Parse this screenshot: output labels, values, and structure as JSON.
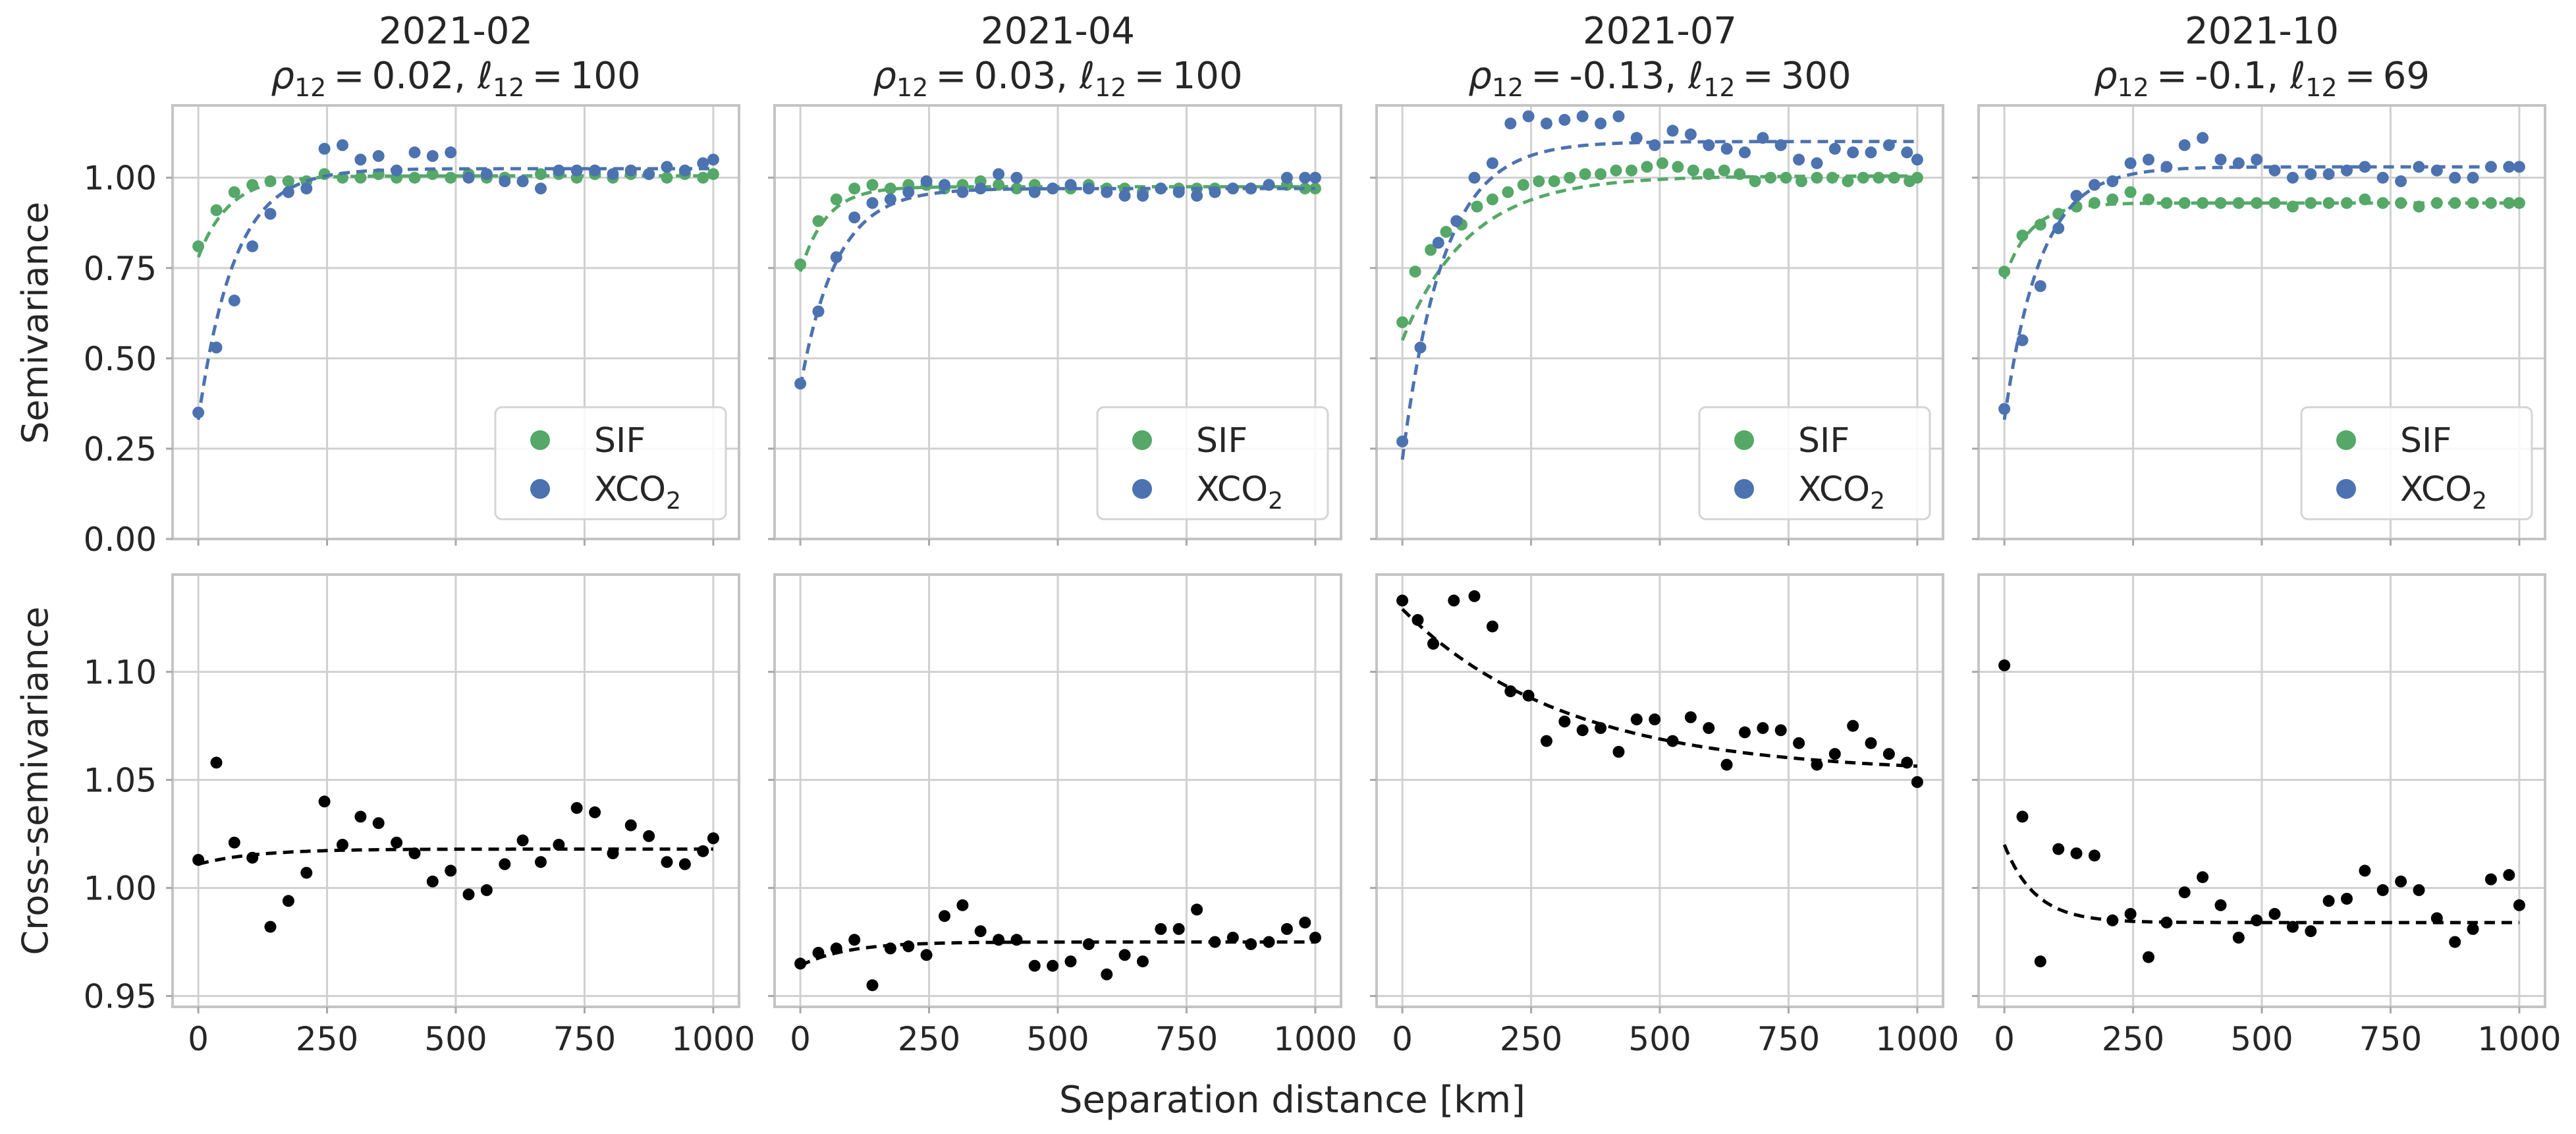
{
  "figure": {
    "xlabel": "Separation distance [km]",
    "row_ylabels": [
      "Semivariance",
      "Cross-semivariance"
    ],
    "sif_color": "#55a868",
    "xco2_color": "#4c72b0",
    "cross_color": "#000000",
    "legend": {
      "sif_label": "SIF",
      "xco2_label": "XCO",
      "xco2_subscript": "2",
      "placement": "lower-right"
    }
  },
  "chart_data": [
    {
      "type": "scatter",
      "panel": "semivariance",
      "title": "2021-02",
      "subtitle": {
        "rho": "0.02",
        "ell": "100"
      },
      "xlim": [
        -50,
        1050
      ],
      "ylim": [
        0,
        1.2
      ],
      "xticks": [
        0,
        250,
        500,
        750,
        1000
      ],
      "yticks": [
        0.0,
        0.25,
        0.5,
        0.75,
        1.0
      ],
      "ytick_labels": [
        "0.00",
        "0.25",
        "0.50",
        "0.75",
        "1.00"
      ],
      "series": [
        {
          "name": "SIF",
          "x": [
            0,
            35,
            70,
            105,
            140,
            175,
            210,
            245,
            280,
            315,
            350,
            385,
            420,
            455,
            490,
            525,
            560,
            595,
            630,
            665,
            700,
            735,
            770,
            805,
            840,
            875,
            910,
            945,
            980,
            1000
          ],
          "y": [
            0.81,
            0.91,
            0.96,
            0.98,
            0.99,
            0.99,
            0.99,
            1.01,
            1.0,
            1.0,
            1.01,
            1.0,
            1.0,
            1.01,
            1.0,
            1.01,
            1.0,
            1.0,
            0.99,
            1.01,
            1.01,
            1.0,
            1.01,
            1.0,
            1.01,
            1.01,
            1.0,
            1.01,
            1.0,
            1.01
          ],
          "fit": {
            "sill": 1.005,
            "nugget": 0.78,
            "range": 60
          }
        },
        {
          "name": "XCO2",
          "x": [
            0,
            35,
            70,
            105,
            140,
            175,
            210,
            245,
            280,
            315,
            350,
            385,
            420,
            455,
            490,
            525,
            560,
            595,
            630,
            665,
            700,
            735,
            770,
            805,
            840,
            875,
            910,
            945,
            980,
            1000
          ],
          "y": [
            0.35,
            0.53,
            0.66,
            0.81,
            0.9,
            0.96,
            0.97,
            1.08,
            1.09,
            1.05,
            1.06,
            1.02,
            1.07,
            1.06,
            1.07,
            1.0,
            1.01,
            0.99,
            0.99,
            0.97,
            1.02,
            1.02,
            1.02,
            1.01,
            1.02,
            1.01,
            1.03,
            1.02,
            1.04,
            1.05
          ],
          "fit": {
            "sill": 1.025,
            "nugget": 0.33,
            "range": 70
          }
        }
      ]
    },
    {
      "type": "scatter",
      "panel": "semivariance",
      "title": "2021-04",
      "subtitle": {
        "rho": "0.03",
        "ell": "100"
      },
      "xlim": [
        -50,
        1050
      ],
      "ylim": [
        0,
        1.2
      ],
      "xticks": [
        0,
        250,
        500,
        750,
        1000
      ],
      "yticks": [
        0.0,
        0.25,
        0.5,
        0.75,
        1.0
      ],
      "series": [
        {
          "name": "SIF",
          "x": [
            0,
            35,
            70,
            105,
            140,
            175,
            210,
            245,
            280,
            315,
            350,
            385,
            420,
            455,
            490,
            525,
            560,
            595,
            630,
            665,
            700,
            735,
            770,
            805,
            840,
            875,
            910,
            945,
            980,
            1000
          ],
          "y": [
            0.76,
            0.88,
            0.94,
            0.97,
            0.98,
            0.97,
            0.98,
            0.98,
            0.97,
            0.98,
            0.99,
            0.98,
            0.97,
            0.98,
            0.97,
            0.97,
            0.98,
            0.97,
            0.97,
            0.96,
            0.97,
            0.97,
            0.97,
            0.97,
            0.97,
            0.97,
            0.98,
            0.98,
            0.97,
            0.97
          ],
          "fit": {
            "sill": 0.975,
            "nugget": 0.74,
            "range": 50
          }
        },
        {
          "name": "XCO2",
          "x": [
            0,
            35,
            70,
            105,
            140,
            175,
            210,
            245,
            280,
            315,
            350,
            385,
            420,
            455,
            490,
            525,
            560,
            595,
            630,
            665,
            700,
            735,
            770,
            805,
            840,
            875,
            910,
            945,
            980,
            1000
          ],
          "y": [
            0.43,
            0.63,
            0.78,
            0.89,
            0.93,
            0.94,
            0.96,
            0.99,
            0.98,
            0.96,
            0.97,
            1.01,
            1.0,
            0.96,
            0.97,
            0.98,
            0.97,
            0.96,
            0.95,
            0.95,
            0.97,
            0.96,
            0.95,
            0.96,
            0.97,
            0.97,
            0.98,
            1.0,
            1.0,
            1.0
          ],
          "fit": {
            "sill": 0.97,
            "nugget": 0.42,
            "range": 70
          }
        }
      ]
    },
    {
      "type": "scatter",
      "panel": "semivariance",
      "title": "2021-07",
      "subtitle": {
        "rho": "-0.13",
        "ell": "300"
      },
      "xlim": [
        -50,
        1050
      ],
      "ylim": [
        0,
        1.2
      ],
      "xticks": [
        0,
        250,
        500,
        750,
        1000
      ],
      "yticks": [
        0.0,
        0.25,
        0.5,
        0.75,
        1.0
      ],
      "series": [
        {
          "name": "SIF",
          "x": [
            0,
            25,
            55,
            85,
            115,
            145,
            175,
            205,
            235,
            265,
            295,
            325,
            355,
            385,
            415,
            445,
            475,
            505,
            535,
            565,
            595,
            625,
            655,
            685,
            715,
            745,
            775,
            805,
            835,
            865,
            895,
            925,
            955,
            985,
            1000
          ],
          "y": [
            0.6,
            0.74,
            0.8,
            0.85,
            0.87,
            0.92,
            0.94,
            0.96,
            0.98,
            0.99,
            0.99,
            1.0,
            1.01,
            1.01,
            1.02,
            1.02,
            1.03,
            1.04,
            1.03,
            1.02,
            1.01,
            1.02,
            1.01,
            0.99,
            1.0,
            1.0,
            0.99,
            1.0,
            1.0,
            0.99,
            1.0,
            1.0,
            1.0,
            0.99,
            1.0
          ],
          "fit": {
            "sill": 1.005,
            "nugget": 0.55,
            "range": 130
          }
        },
        {
          "name": "XCO2",
          "x": [
            0,
            35,
            70,
            105,
            140,
            175,
            210,
            245,
            280,
            315,
            350,
            385,
            420,
            455,
            490,
            525,
            560,
            595,
            630,
            665,
            700,
            735,
            770,
            805,
            840,
            875,
            910,
            945,
            980,
            1000
          ],
          "y": [
            0.27,
            0.53,
            0.82,
            0.88,
            1.0,
            1.04,
            1.15,
            1.17,
            1.15,
            1.16,
            1.17,
            1.15,
            1.17,
            1.11,
            1.09,
            1.13,
            1.12,
            1.09,
            1.08,
            1.07,
            1.11,
            1.09,
            1.05,
            1.04,
            1.08,
            1.07,
            1.07,
            1.09,
            1.07,
            1.05
          ],
          "fit": {
            "sill": 1.1,
            "nugget": 0.22,
            "range": 80
          }
        }
      ]
    },
    {
      "type": "scatter",
      "panel": "semivariance",
      "title": "2021-10",
      "subtitle": {
        "rho": "-0.1",
        "ell": "69"
      },
      "xlim": [
        -50,
        1050
      ],
      "ylim": [
        0,
        1.2
      ],
      "xticks": [
        0,
        250,
        500,
        750,
        1000
      ],
      "yticks": [
        0.0,
        0.25,
        0.5,
        0.75,
        1.0
      ],
      "series": [
        {
          "name": "SIF",
          "x": [
            0,
            35,
            70,
            105,
            140,
            175,
            210,
            245,
            280,
            315,
            350,
            385,
            420,
            455,
            490,
            525,
            560,
            595,
            630,
            665,
            700,
            735,
            770,
            805,
            840,
            875,
            910,
            945,
            980,
            1000
          ],
          "y": [
            0.74,
            0.84,
            0.87,
            0.9,
            0.92,
            0.93,
            0.94,
            0.96,
            0.94,
            0.93,
            0.93,
            0.93,
            0.93,
            0.93,
            0.93,
            0.93,
            0.92,
            0.93,
            0.93,
            0.93,
            0.94,
            0.93,
            0.93,
            0.92,
            0.93,
            0.93,
            0.93,
            0.93,
            0.93,
            0.93
          ],
          "fit": {
            "sill": 0.93,
            "nugget": 0.72,
            "range": 50
          }
        },
        {
          "name": "XCO2",
          "x": [
            0,
            35,
            70,
            105,
            140,
            175,
            210,
            245,
            280,
            315,
            350,
            385,
            420,
            455,
            490,
            525,
            560,
            595,
            630,
            665,
            700,
            735,
            770,
            805,
            840,
            875,
            910,
            945,
            980,
            1000
          ],
          "y": [
            0.36,
            0.55,
            0.7,
            0.86,
            0.95,
            0.98,
            0.99,
            1.04,
            1.05,
            1.03,
            1.09,
            1.11,
            1.05,
            1.04,
            1.05,
            1.02,
            1.0,
            1.01,
            1.01,
            1.02,
            1.03,
            1.0,
            0.99,
            1.03,
            1.02,
            1.0,
            1.0,
            1.03,
            1.03,
            1.03
          ],
          "fit": {
            "sill": 1.03,
            "nugget": 0.33,
            "range": 70
          }
        }
      ]
    },
    {
      "type": "scatter",
      "panel": "cross-semivariance",
      "title": "2021-02",
      "xlim": [
        -50,
        1050
      ],
      "ylim": [
        0.945,
        1.145
      ],
      "xticks": [
        0,
        250,
        500,
        750,
        1000
      ],
      "xtick_labels": [
        "0",
        "250",
        "500",
        "750",
        "1000"
      ],
      "yticks": [
        0.95,
        1.0,
        1.05,
        1.1
      ],
      "ytick_labels": [
        "0.95",
        "1.00",
        "1.05",
        "1.10"
      ],
      "series": [
        {
          "name": "cross",
          "x": [
            0,
            35,
            70,
            105,
            140,
            175,
            210,
            245,
            280,
            315,
            350,
            385,
            420,
            455,
            490,
            525,
            560,
            595,
            630,
            665,
            700,
            735,
            770,
            805,
            840,
            875,
            910,
            945,
            980,
            1000
          ],
          "y": [
            1.013,
            1.058,
            1.021,
            1.014,
            0.982,
            0.994,
            1.007,
            1.04,
            1.02,
            1.033,
            1.03,
            1.021,
            1.016,
            1.003,
            1.008,
            0.997,
            0.999,
            1.011,
            1.022,
            1.012,
            1.02,
            1.037,
            1.035,
            1.016,
            1.029,
            1.024,
            1.012,
            1.011,
            1.017,
            1.023
          ],
          "fit": {
            "start": 1.011,
            "end": 1.018,
            "scale": 110
          }
        }
      ]
    },
    {
      "type": "scatter",
      "panel": "cross-semivariance",
      "title": "2021-04",
      "xlim": [
        -50,
        1050
      ],
      "ylim": [
        0.945,
        1.145
      ],
      "xticks": [
        0,
        250,
        500,
        750,
        1000
      ],
      "yticks": [
        0.95,
        1.0,
        1.05,
        1.1
      ],
      "series": [
        {
          "name": "cross",
          "x": [
            0,
            35,
            70,
            105,
            140,
            175,
            210,
            245,
            280,
            315,
            350,
            385,
            420,
            455,
            490,
            525,
            560,
            595,
            630,
            665,
            700,
            735,
            770,
            805,
            840,
            875,
            910,
            945,
            980,
            1000
          ],
          "y": [
            0.965,
            0.97,
            0.972,
            0.976,
            0.955,
            0.972,
            0.973,
            0.969,
            0.987,
            0.992,
            0.98,
            0.976,
            0.976,
            0.964,
            0.964,
            0.966,
            0.974,
            0.96,
            0.969,
            0.966,
            0.981,
            0.981,
            0.99,
            0.975,
            0.977,
            0.974,
            0.975,
            0.981,
            0.984,
            0.977
          ],
          "fit": {
            "start": 0.964,
            "end": 0.975,
            "scale": 90
          }
        }
      ]
    },
    {
      "type": "scatter",
      "panel": "cross-semivariance",
      "title": "2021-07",
      "xlim": [
        -50,
        1050
      ],
      "ylim": [
        0.945,
        1.145
      ],
      "xticks": [
        0,
        250,
        500,
        750,
        1000
      ],
      "yticks": [
        0.95,
        1.0,
        1.05,
        1.1
      ],
      "series": [
        {
          "name": "cross",
          "x": [
            0,
            30,
            60,
            100,
            140,
            175,
            210,
            245,
            280,
            315,
            350,
            385,
            420,
            455,
            490,
            525,
            560,
            595,
            630,
            665,
            700,
            735,
            770,
            805,
            840,
            875,
            910,
            945,
            980,
            1000
          ],
          "y": [
            1.133,
            1.124,
            1.113,
            1.133,
            1.135,
            1.121,
            1.091,
            1.089,
            1.068,
            1.077,
            1.073,
            1.074,
            1.063,
            1.078,
            1.078,
            1.068,
            1.079,
            1.074,
            1.057,
            1.072,
            1.074,
            1.073,
            1.067,
            1.057,
            1.062,
            1.075,
            1.067,
            1.062,
            1.058,
            1.049
          ],
          "fit": {
            "start": 1.129,
            "end": 1.053,
            "scale": 320
          }
        }
      ]
    },
    {
      "type": "scatter",
      "panel": "cross-semivariance",
      "title": "2021-10",
      "xlim": [
        -50,
        1050
      ],
      "ylim": [
        0.945,
        1.145
      ],
      "xticks": [
        0,
        250,
        500,
        750,
        1000
      ],
      "yticks": [
        0.95,
        1.0,
        1.05,
        1.1
      ],
      "series": [
        {
          "name": "cross",
          "x": [
            0,
            35,
            70,
            105,
            140,
            175,
            210,
            245,
            280,
            315,
            350,
            385,
            420,
            455,
            490,
            525,
            560,
            595,
            630,
            665,
            700,
            735,
            770,
            805,
            840,
            875,
            910,
            945,
            980,
            1000
          ],
          "y": [
            1.103,
            1.033,
            0.966,
            1.018,
            1.016,
            1.015,
            0.985,
            0.988,
            0.968,
            0.984,
            0.998,
            1.005,
            0.992,
            0.977,
            0.985,
            0.988,
            0.982,
            0.98,
            0.994,
            0.995,
            1.008,
            0.999,
            1.003,
            0.999,
            0.986,
            0.975,
            0.981,
            1.004,
            1.006,
            0.992
          ],
          "fit": {
            "start": 1.02,
            "end": 0.984,
            "scale": 60
          }
        }
      ]
    }
  ]
}
